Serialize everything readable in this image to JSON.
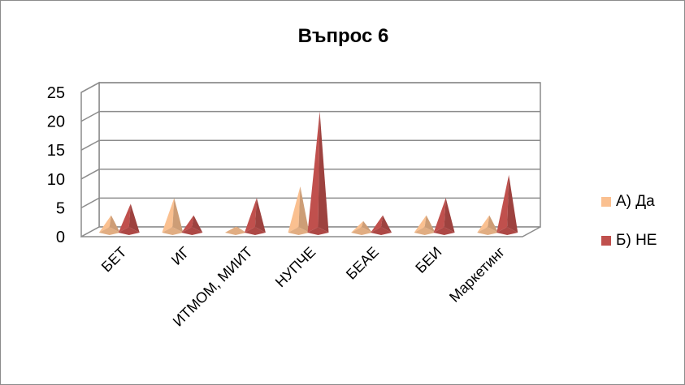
{
  "chart_data": {
    "type": "bar",
    "title": "Въпрос 6",
    "categories": [
      "БЕТ",
      "ИГ",
      "ИТМОМ, МИИТ",
      "НУПЧЕ",
      "БЕАЕ",
      "БЕИ",
      "Маркетинг"
    ],
    "series": [
      {
        "name": "А) Да",
        "values": [
          3,
          6,
          1,
          8,
          2,
          3,
          3
        ],
        "color": "#fac090"
      },
      {
        "name": "Б) НЕ",
        "values": [
          5,
          3,
          6,
          21,
          3,
          6,
          10
        ],
        "color": "#c0504d"
      }
    ],
    "yticks": [
      "0",
      "5",
      "10",
      "15",
      "20",
      "25"
    ],
    "ylim": [
      0,
      25
    ],
    "grid": true,
    "legend_position": "right",
    "mark_shape": "3d-pyramid"
  }
}
